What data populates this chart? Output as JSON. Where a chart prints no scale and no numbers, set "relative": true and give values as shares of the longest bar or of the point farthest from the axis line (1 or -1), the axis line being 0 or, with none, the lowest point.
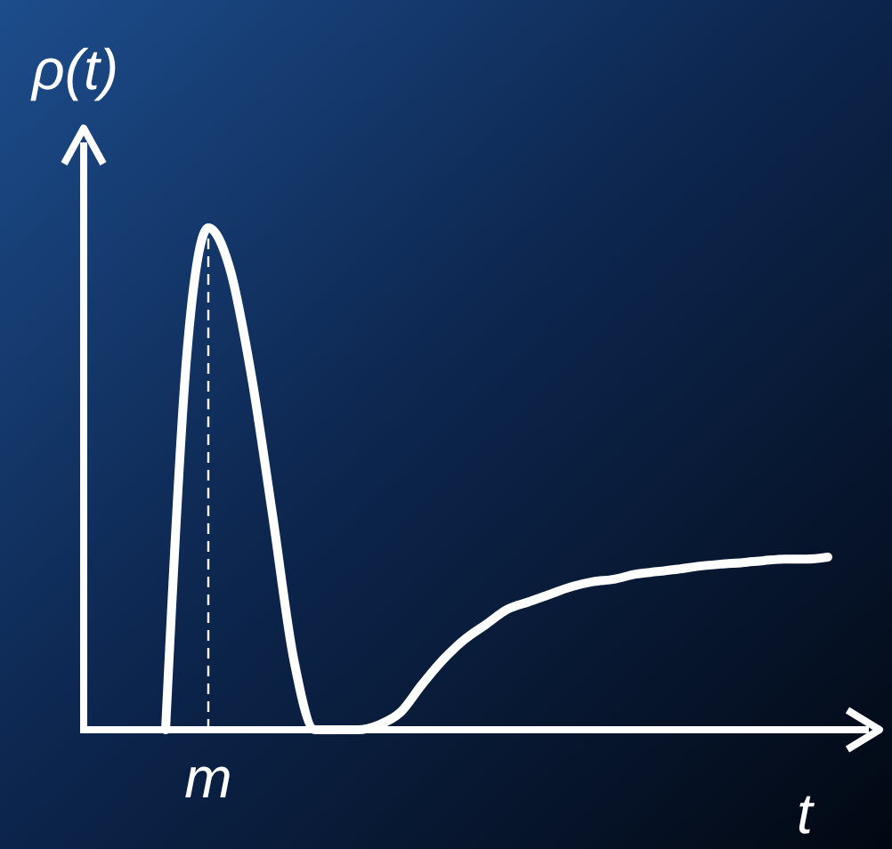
{
  "chart_data": {
    "type": "line",
    "relative": true,
    "xlabel": "t",
    "ylabel": "ρ(t)",
    "categories": [
      null,
      null,
      null,
      null,
      null,
      null,
      null,
      null,
      null,
      null,
      null,
      null,
      null,
      null,
      null,
      null,
      null,
      null,
      null,
      null,
      null,
      null,
      null,
      null,
      null,
      null,
      null,
      null,
      null,
      null,
      null,
      null
    ],
    "series": [
      {
        "color": "#ffffff",
        "values": [
          0,
          0.75,
          1,
          0.92,
          0.71,
          0.43,
          0.14,
          0,
          0,
          0,
          0.01,
          0.035,
          0.09,
          0.14,
          0.18,
          0.21,
          0.24,
          0.255,
          0.27,
          0.285,
          0.295,
          0.3,
          0.31,
          0.315,
          0.32,
          0.326,
          0.33,
          0.333,
          0.337,
          0.34,
          0.34,
          0.344
        ]
      }
    ],
    "annotations": [
      "m"
    ],
    "marker": "none",
    "line_style": "solid"
  }
}
